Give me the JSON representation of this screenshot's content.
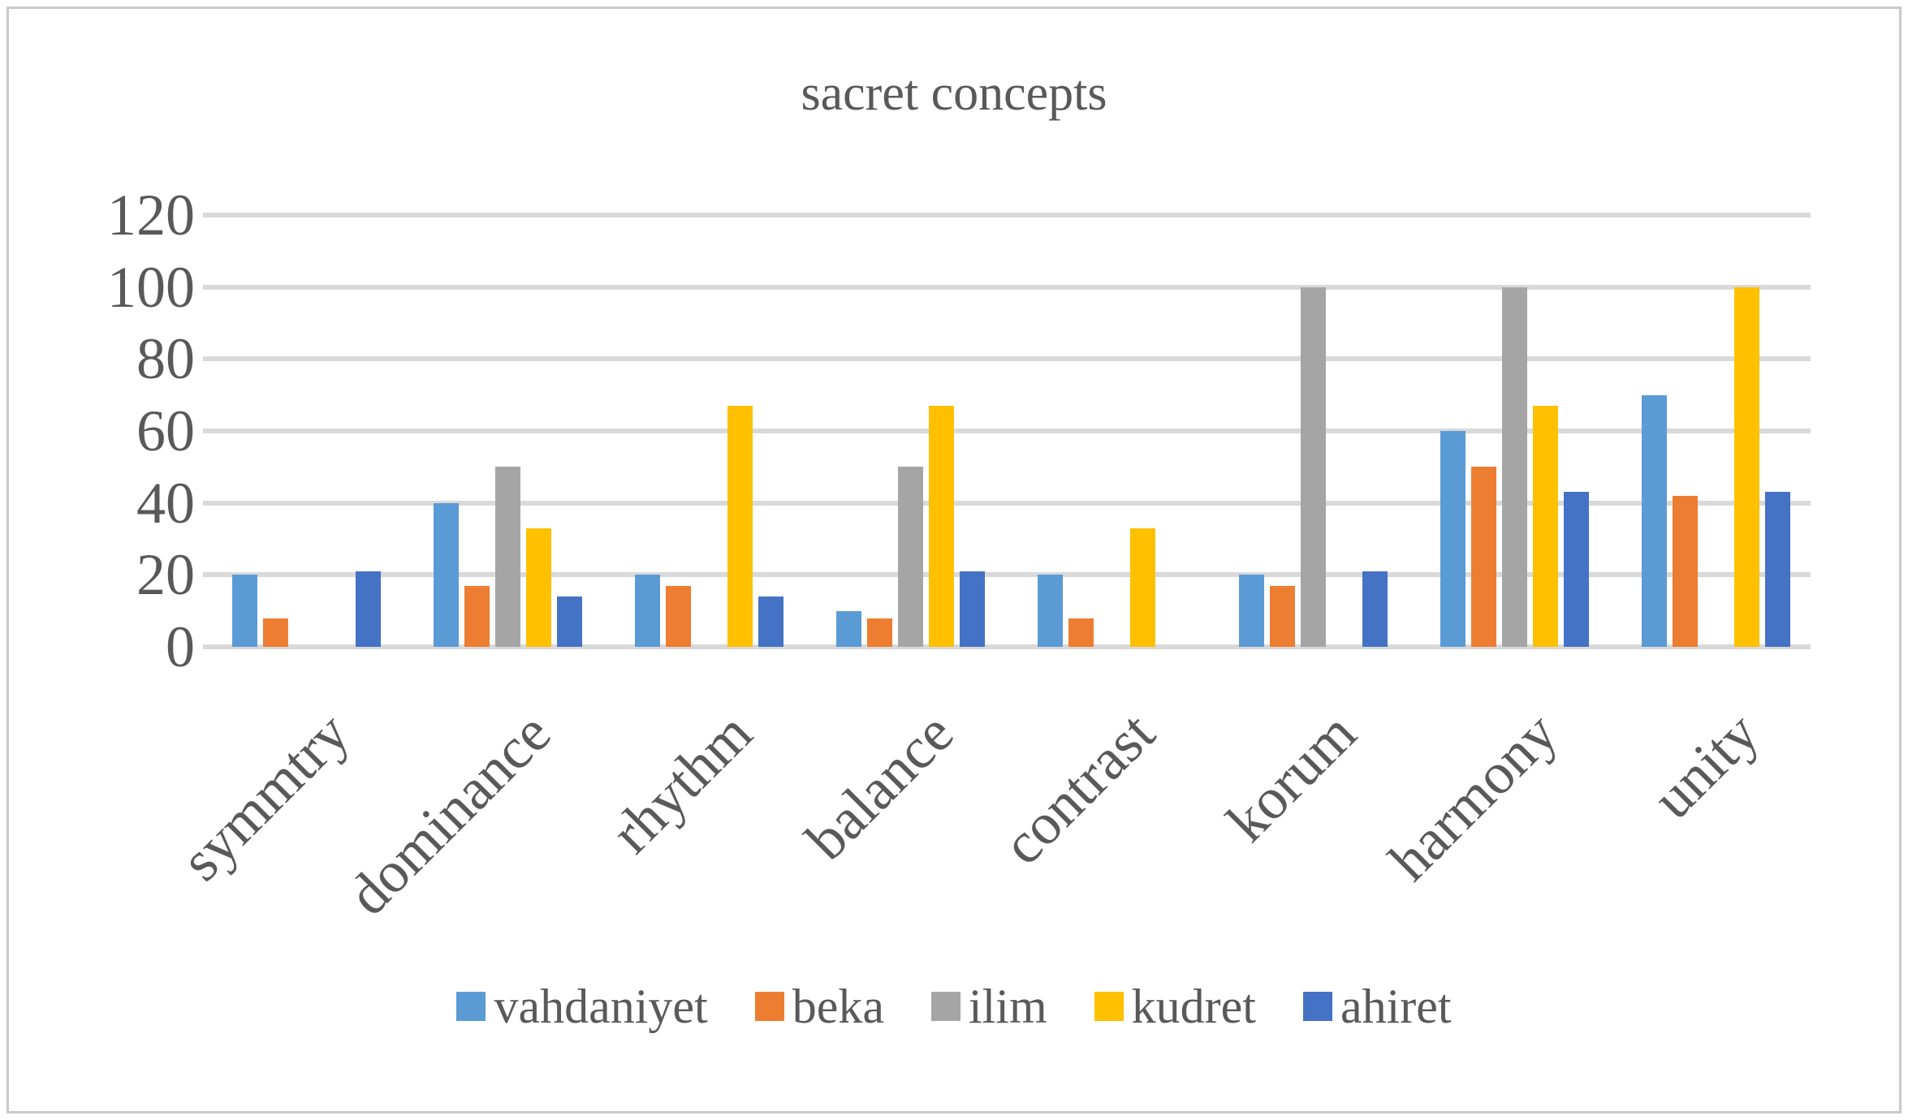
{
  "chart_data": {
    "type": "bar",
    "title": "sacret concepts",
    "categories": [
      "symmtry",
      "dominance",
      "rhythm",
      "balance",
      "contrast",
      "korum",
      "harmony",
      "unity"
    ],
    "series": [
      {
        "name": "vahdaniyet",
        "color": "#5B9BD5",
        "values": [
          20,
          40,
          20,
          10,
          20,
          20,
          60,
          70
        ]
      },
      {
        "name": "beka",
        "color": "#ED7D31",
        "values": [
          8,
          17,
          17,
          8,
          8,
          17,
          50,
          42
        ]
      },
      {
        "name": "ilim",
        "color": "#A5A5A5",
        "values": [
          0,
          50,
          0,
          50,
          0,
          100,
          100,
          0
        ]
      },
      {
        "name": "kudret",
        "color": "#FFC000",
        "values": [
          0,
          33,
          67,
          67,
          33,
          0,
          67,
          100
        ]
      },
      {
        "name": "ahiret",
        "color": "#4472C4",
        "values": [
          21,
          14,
          14,
          21,
          0,
          21,
          43,
          43
        ]
      }
    ],
    "xlabel": "",
    "ylabel": "",
    "ylim": [
      0,
      120
    ],
    "yticks": [
      0,
      20,
      40,
      60,
      80,
      100,
      120
    ],
    "grid": true,
    "legend_position": "bottom",
    "colors": {
      "gridline": "#D9D9D9",
      "text": "#595959",
      "frame_border": "#C9C9C9"
    }
  }
}
